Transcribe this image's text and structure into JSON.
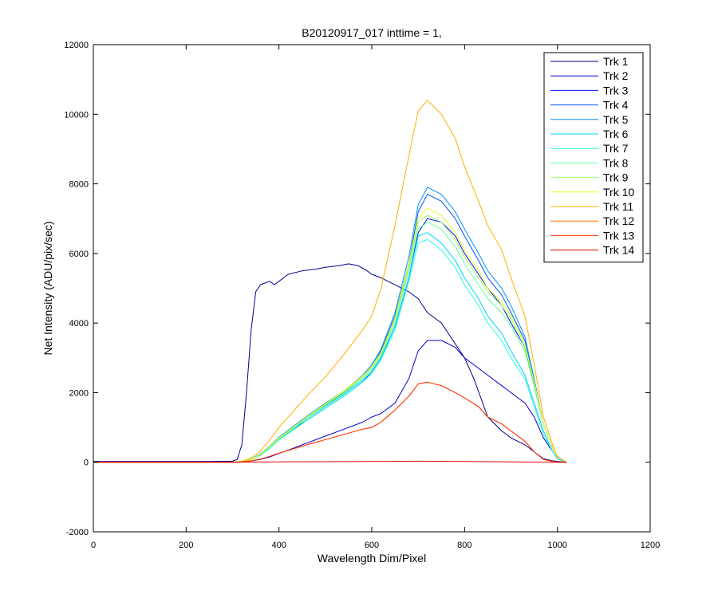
{
  "chart_data": {
    "type": "line",
    "title": "B20120917_017 inttime = 1,",
    "xlabel": "Wavelength Dim/Pixel",
    "ylabel": "Net Intensity (ADU/pix/sec)",
    "xlim": [
      0,
      1200
    ],
    "ylim": [
      -2000,
      12000
    ],
    "xticks": [
      0,
      200,
      400,
      600,
      800,
      1000,
      1200
    ],
    "yticks": [
      -2000,
      0,
      2000,
      4000,
      6000,
      8000,
      10000,
      12000
    ],
    "grid": false,
    "legend_position": "top-right",
    "series": [
      {
        "name": "Trk 1",
        "color": "#00008F",
        "x": [
          0,
          50,
          100,
          150,
          200,
          250,
          300,
          310,
          320,
          330,
          340,
          350,
          360,
          370,
          380,
          390,
          400,
          420,
          450,
          480,
          500,
          530,
          550,
          570,
          590,
          600,
          620,
          650,
          680,
          700,
          720,
          750,
          780,
          800,
          820,
          850,
          880,
          900,
          930,
          950,
          970,
          990,
          1000,
          1020
        ],
        "y": [
          20,
          20,
          20,
          20,
          20,
          20,
          30,
          80,
          500,
          2000,
          3800,
          4900,
          5100,
          5150,
          5200,
          5100,
          5200,
          5400,
          5500,
          5550,
          5600,
          5650,
          5700,
          5650,
          5500,
          5400,
          5300,
          5100,
          4900,
          4700,
          4300,
          4000,
          3400,
          3000,
          2400,
          1300,
          900,
          700,
          500,
          300,
          100,
          40,
          20,
          0
        ]
      },
      {
        "name": "Trk 2",
        "color": "#0000CF",
        "x": [
          0,
          300,
          320,
          340,
          360,
          380,
          400,
          430,
          460,
          500,
          540,
          580,
          600,
          620,
          650,
          680,
          700,
          720,
          750,
          780,
          800,
          830,
          850,
          880,
          900,
          930,
          950,
          970,
          990,
          1000,
          1020
        ],
        "y": [
          0,
          0,
          10,
          40,
          80,
          150,
          250,
          400,
          550,
          750,
          950,
          1150,
          1300,
          1400,
          1700,
          2400,
          3200,
          3500,
          3500,
          3300,
          3000,
          2700,
          2500,
          2200,
          2000,
          1700,
          1300,
          700,
          300,
          100,
          0
        ]
      },
      {
        "name": "Trk 3",
        "color": "#0010FF",
        "x": [
          0,
          300,
          320,
          340,
          360,
          380,
          400,
          430,
          460,
          500,
          540,
          580,
          600,
          620,
          650,
          680,
          700,
          720,
          750,
          780,
          800,
          830,
          850,
          880,
          900,
          930,
          950,
          970,
          990,
          1000,
          1020
        ],
        "y": [
          0,
          0,
          20,
          80,
          200,
          400,
          650,
          950,
          1200,
          1550,
          1900,
          2300,
          2600,
          3000,
          3900,
          5300,
          6600,
          7000,
          6900,
          6500,
          6000,
          5400,
          5000,
          4500,
          4000,
          3300,
          2200,
          1100,
          400,
          150,
          0
        ]
      },
      {
        "name": "Trk 4",
        "color": "#0050FF",
        "x": [
          0,
          300,
          320,
          340,
          360,
          380,
          400,
          430,
          460,
          500,
          540,
          580,
          600,
          620,
          650,
          680,
          700,
          720,
          750,
          780,
          800,
          830,
          850,
          880,
          900,
          930,
          950,
          970,
          990,
          1000,
          1020
        ],
        "y": [
          0,
          0,
          20,
          90,
          230,
          450,
          700,
          1000,
          1300,
          1650,
          2000,
          2450,
          2750,
          3200,
          4200,
          5700,
          7200,
          7700,
          7500,
          7000,
          6500,
          5800,
          5300,
          4800,
          4300,
          3500,
          2300,
          1100,
          400,
          150,
          0
        ]
      },
      {
        "name": "Trk 5",
        "color": "#0090FF",
        "x": [
          0,
          300,
          320,
          340,
          360,
          380,
          400,
          430,
          460,
          500,
          540,
          580,
          600,
          620,
          650,
          680,
          700,
          720,
          750,
          780,
          800,
          830,
          850,
          880,
          900,
          930,
          950,
          970,
          990,
          1000,
          1020
        ],
        "y": [
          0,
          0,
          20,
          90,
          240,
          460,
          720,
          1020,
          1320,
          1700,
          2050,
          2500,
          2800,
          3250,
          4300,
          5900,
          7400,
          7900,
          7700,
          7200,
          6700,
          6000,
          5500,
          5000,
          4500,
          3600,
          2400,
          1100,
          400,
          150,
          0
        ]
      },
      {
        "name": "Trk 6",
        "color": "#00D0FF",
        "x": [
          0,
          300,
          320,
          340,
          360,
          380,
          400,
          430,
          460,
          500,
          540,
          580,
          600,
          620,
          650,
          680,
          700,
          720,
          750,
          780,
          800,
          830,
          850,
          880,
          900,
          930,
          950,
          970,
          990,
          1000,
          1020
        ],
        "y": [
          0,
          0,
          20,
          80,
          210,
          420,
          660,
          950,
          1250,
          1600,
          1950,
          2350,
          2600,
          3000,
          3900,
          5300,
          6500,
          6600,
          6300,
          5800,
          5300,
          4700,
          4200,
          3700,
          3200,
          2500,
          1700,
          900,
          300,
          100,
          0
        ]
      },
      {
        "name": "Trk 7",
        "color": "#20FFDF",
        "x": [
          0,
          300,
          320,
          340,
          360,
          380,
          400,
          430,
          460,
          500,
          540,
          580,
          600,
          620,
          650,
          680,
          700,
          720,
          750,
          780,
          800,
          830,
          850,
          880,
          900,
          930,
          950,
          970,
          990,
          1000,
          1020
        ],
        "y": [
          0,
          0,
          20,
          80,
          200,
          400,
          640,
          920,
          1200,
          1550,
          1900,
          2300,
          2550,
          2950,
          3800,
          5200,
          6300,
          6400,
          6100,
          5600,
          5100,
          4500,
          4000,
          3500,
          3000,
          2400,
          1600,
          800,
          300,
          100,
          0
        ]
      },
      {
        "name": "Trk 8",
        "color": "#60FF9F",
        "x": [
          0,
          300,
          320,
          340,
          360,
          380,
          400,
          430,
          460,
          500,
          540,
          580,
          600,
          620,
          650,
          680,
          700,
          720,
          750,
          780,
          800,
          830,
          850,
          880,
          900,
          930,
          950,
          970,
          990,
          1000,
          1020
        ],
        "y": [
          0,
          0,
          20,
          80,
          210,
          420,
          670,
          960,
          1260,
          1620,
          1980,
          2400,
          2650,
          3050,
          4000,
          5500,
          6700,
          6900,
          6700,
          6200,
          5700,
          5100,
          4700,
          4300,
          3900,
          3200,
          2200,
          1100,
          400,
          150,
          0
        ]
      },
      {
        "name": "Trk 9",
        "color": "#9FFF60",
        "x": [
          0,
          300,
          320,
          340,
          360,
          380,
          400,
          430,
          460,
          500,
          540,
          580,
          600,
          620,
          650,
          680,
          700,
          720,
          750,
          780,
          800,
          830,
          850,
          880,
          900,
          930,
          950,
          970,
          990,
          1000,
          1020
        ],
        "y": [
          0,
          0,
          20,
          85,
          220,
          440,
          690,
          990,
          1290,
          1660,
          2020,
          2450,
          2700,
          3100,
          4100,
          5600,
          6900,
          7100,
          6900,
          6400,
          5900,
          5300,
          4900,
          4500,
          4100,
          3300,
          2300,
          1100,
          400,
          150,
          0
        ]
      },
      {
        "name": "Trk 10",
        "color": "#DFFF20",
        "x": [
          0,
          300,
          320,
          340,
          360,
          380,
          400,
          430,
          460,
          500,
          540,
          580,
          600,
          620,
          650,
          680,
          700,
          720,
          750,
          780,
          800,
          830,
          850,
          880,
          900,
          930,
          950,
          970,
          990,
          1000,
          1020
        ],
        "y": [
          0,
          0,
          20,
          85,
          225,
          450,
          700,
          1000,
          1300,
          1680,
          2050,
          2480,
          2750,
          3150,
          4150,
          5700,
          7000,
          7300,
          7100,
          6600,
          6100,
          5500,
          5000,
          4600,
          4200,
          3400,
          2300,
          1100,
          400,
          150,
          0
        ]
      },
      {
        "name": "Trk 11",
        "color": "#FFB000",
        "x": [
          0,
          300,
          320,
          340,
          360,
          380,
          400,
          430,
          460,
          500,
          540,
          580,
          600,
          620,
          650,
          680,
          700,
          720,
          750,
          780,
          800,
          830,
          850,
          880,
          900,
          930,
          950,
          970,
          990,
          1000,
          1020
        ],
        "y": [
          0,
          0,
          30,
          120,
          320,
          640,
          1000,
          1450,
          1900,
          2450,
          3100,
          3800,
          4200,
          5000,
          6800,
          8800,
          10100,
          10400,
          10000,
          9300,
          8500,
          7500,
          6800,
          6100,
          5300,
          4200,
          2800,
          1300,
          500,
          150,
          0
        ]
      },
      {
        "name": "Trk 12",
        "color": "#FF7000",
        "x": [
          0,
          300,
          320,
          340,
          360,
          380,
          400,
          430,
          460,
          500,
          540,
          580,
          600,
          620,
          650,
          680,
          700,
          720,
          750,
          780,
          800,
          830,
          850,
          880,
          900,
          930,
          950,
          970,
          990,
          1000,
          1020
        ],
        "y": [
          0,
          0,
          10,
          40,
          90,
          170,
          260,
          380,
          500,
          650,
          800,
          950,
          1000,
          1150,
          1500,
          1900,
          2250,
          2300,
          2200,
          2000,
          1850,
          1600,
          1300,
          1100,
          900,
          600,
          300,
          80,
          20,
          0,
          0
        ]
      },
      {
        "name": "Trk 13",
        "color": "#FF3000",
        "x": [
          0,
          300,
          320,
          340,
          360,
          380,
          400,
          430,
          460,
          500,
          540,
          580,
          600,
          620,
          650,
          680,
          700,
          720,
          750,
          780,
          800,
          830,
          850,
          880,
          900,
          930,
          950,
          970,
          990,
          1000,
          1020
        ],
        "y": [
          0,
          0,
          10,
          40,
          90,
          170,
          260,
          380,
          500,
          650,
          800,
          950,
          1000,
          1150,
          1500,
          1900,
          2250,
          2300,
          2200,
          2000,
          1850,
          1600,
          1300,
          1100,
          900,
          600,
          300,
          80,
          20,
          0,
          0
        ]
      },
      {
        "name": "Trk 14",
        "color": "#DF0000",
        "x": [
          0,
          300,
          400,
          600,
          700,
          800,
          900,
          960,
          1020
        ],
        "y": [
          0,
          0,
          10,
          20,
          30,
          20,
          10,
          0,
          0
        ]
      }
    ]
  }
}
